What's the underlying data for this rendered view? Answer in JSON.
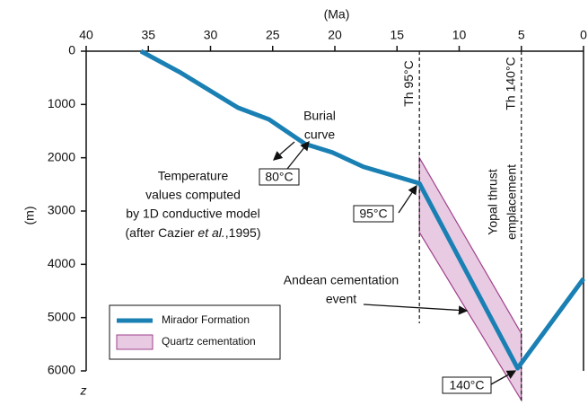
{
  "chart_data": {
    "type": "line",
    "xlabel": "(Ma)",
    "ylabel": "(m)",
    "zlabel": "z",
    "xlim": [
      40,
      0
    ],
    "ylim": [
      0,
      6000
    ],
    "xticks": [
      40,
      35,
      30,
      25,
      20,
      15,
      10,
      5,
      0
    ],
    "yticks": [
      0,
      1000,
      2000,
      3000,
      4000,
      5000,
      6000
    ],
    "series": [
      {
        "name": "Mirador Formation",
        "color": "#1a80b4",
        "x": [
          35.6,
          32.5,
          27.8,
          25.3,
          22.4,
          20.2,
          17.7,
          13.2,
          5.3,
          0
        ],
        "values": [
          0,
          390,
          1060,
          1280,
          1740,
          1900,
          2170,
          2480,
          5950,
          4270
        ]
      },
      {
        "name": "Quartz cementation",
        "type": "area",
        "color": "#e8cbe2",
        "edge": "#a0408c",
        "x": [
          13.2,
          5,
          5,
          13.2
        ],
        "values": [
          2000,
          5300,
          6550,
          3400
        ]
      }
    ],
    "vlines": [
      {
        "x": 13.2,
        "label": "Th 95°C"
      },
      {
        "x": 5,
        "label": "Th 140°C"
      }
    ],
    "annotations": [
      {
        "lines": [
          "Burial",
          "curve"
        ]
      },
      {
        "lines": [
          "Temperature",
          "values computed",
          "by 1D conductive model"
        ],
        "last": [
          "(after Cazier ",
          "et al.",
          ",1995)"
        ]
      },
      {
        "lines": [
          "Andean cementation",
          "event"
        ]
      },
      {
        "lines": [
          "Yopal thrust",
          "emplacement"
        ]
      }
    ],
    "temperatures": [
      "80°C",
      "95°C",
      "140°C"
    ]
  }
}
